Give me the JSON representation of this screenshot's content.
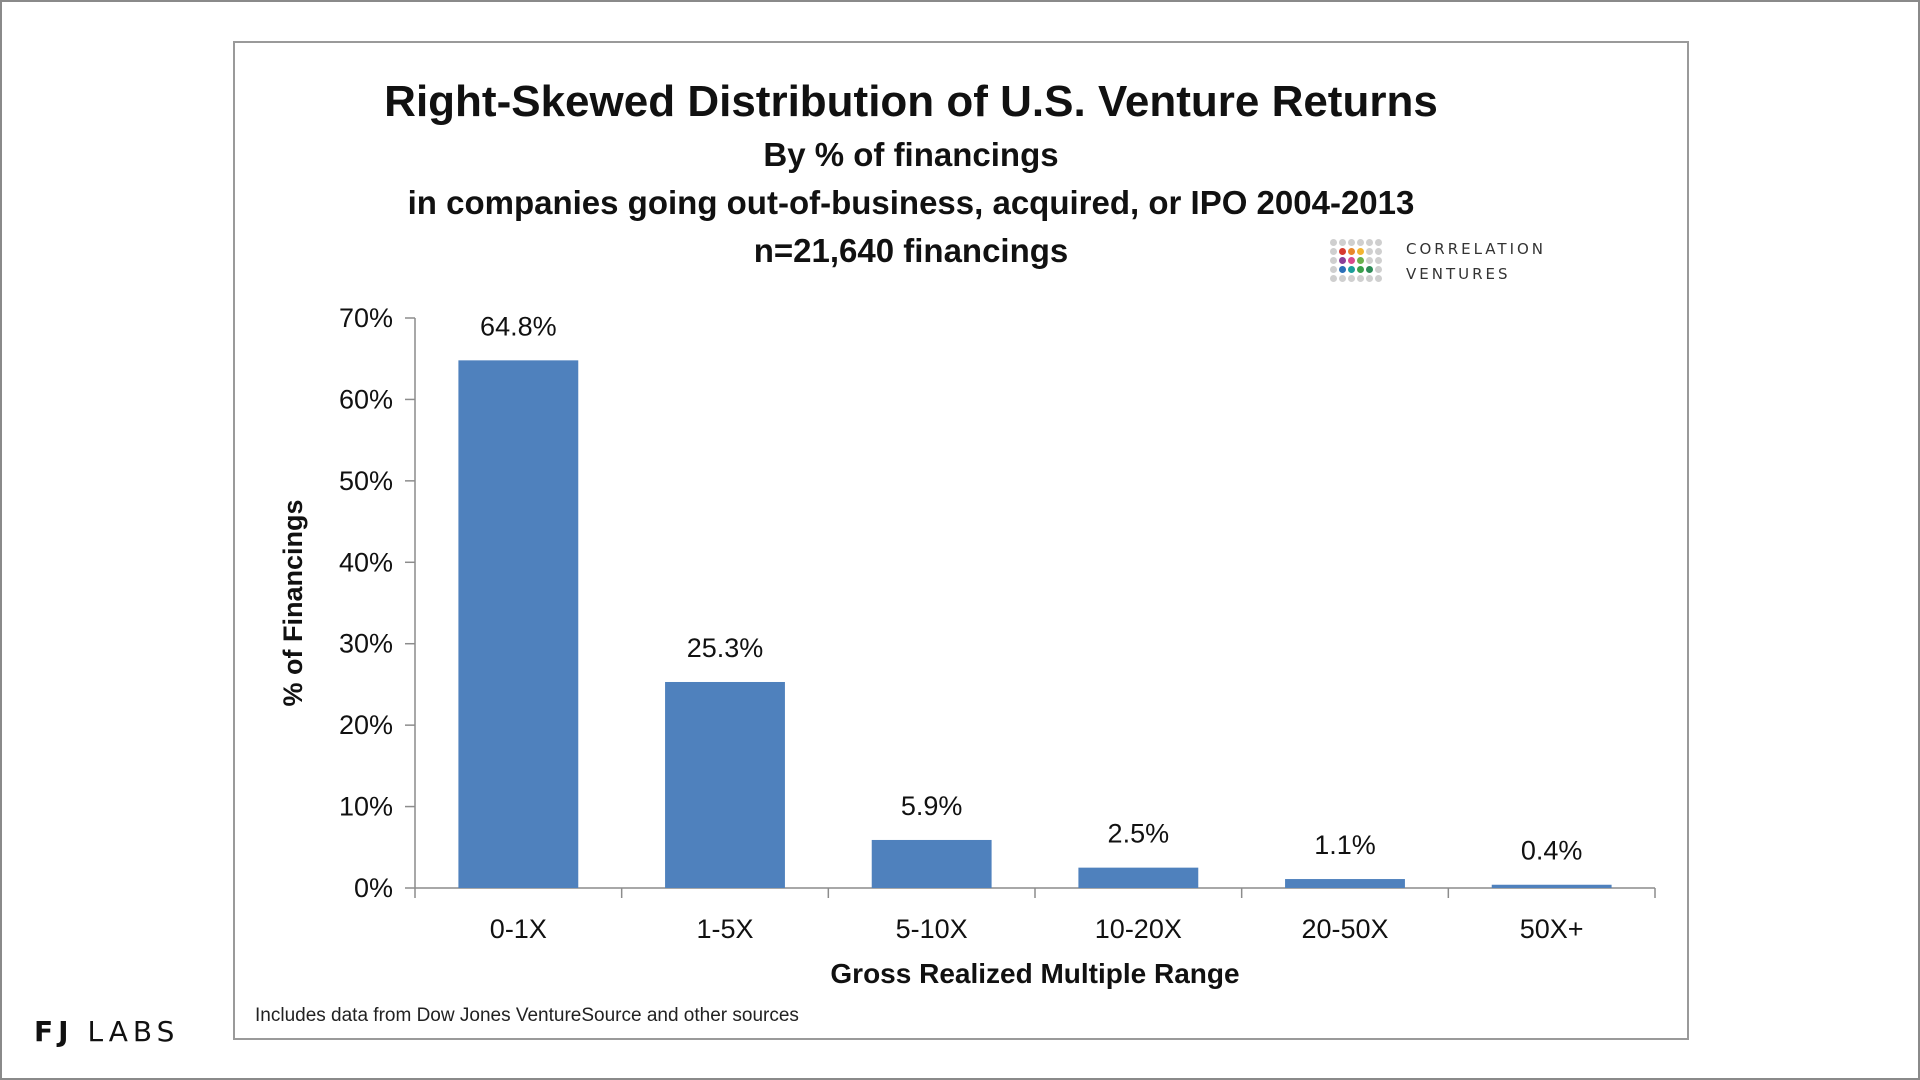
{
  "footer": {
    "logo_bold": "FJ",
    "logo_light": "LABS"
  },
  "brand": {
    "line1": "Correlation",
    "line2": "Ventures",
    "dot_colors": [
      "#cfcfcf",
      "#cfcfcf",
      "#cfcfcf",
      "#cfcfcf",
      "#cfcfcf",
      "#cfcfcf",
      "#cfcfcf",
      "#d63a2f",
      "#e8872b",
      "#f2b431",
      "#cfcfcf",
      "#cfcfcf",
      "#cfcfcf",
      "#8a3f98",
      "#d84a8c",
      "#6ab04c",
      "#cfcfcf",
      "#cfcfcf",
      "#cfcfcf",
      "#2a6fb8",
      "#1b9e9a",
      "#3aa04a",
      "#2e8b57",
      "#cfcfcf",
      "#cfcfcf",
      "#cfcfcf",
      "#cfcfcf",
      "#cfcfcf",
      "#cfcfcf",
      "#cfcfcf"
    ]
  },
  "source_note": "Includes data from Dow Jones VentureSource and other sources",
  "chart_data": {
    "type": "bar",
    "title": "Right-Skewed Distribution of U.S. Venture Returns",
    "subtitle_lines": [
      "By % of financings",
      "in companies going out-of-business, acquired, or IPO 2004-2013",
      "n=21,640 financings"
    ],
    "xlabel": "Gross Realized Multiple Range",
    "ylabel": "% of Financings",
    "categories": [
      "0-1X",
      "1-5X",
      "5-10X",
      "10-20X",
      "20-50X",
      "50X+"
    ],
    "values": [
      64.8,
      25.3,
      5.9,
      2.5,
      1.1,
      0.4
    ],
    "data_labels": [
      "64.8%",
      "25.3%",
      "5.9%",
      "2.5%",
      "1.1%",
      "0.4%"
    ],
    "ylim": [
      0,
      70
    ],
    "yticks": [
      0,
      10,
      20,
      30,
      40,
      50,
      60,
      70
    ],
    "ytick_labels": [
      "0%",
      "10%",
      "20%",
      "30%",
      "40%",
      "50%",
      "60%",
      "70%"
    ],
    "bar_color": "#4f81bd",
    "grid": false,
    "legend": "none"
  }
}
